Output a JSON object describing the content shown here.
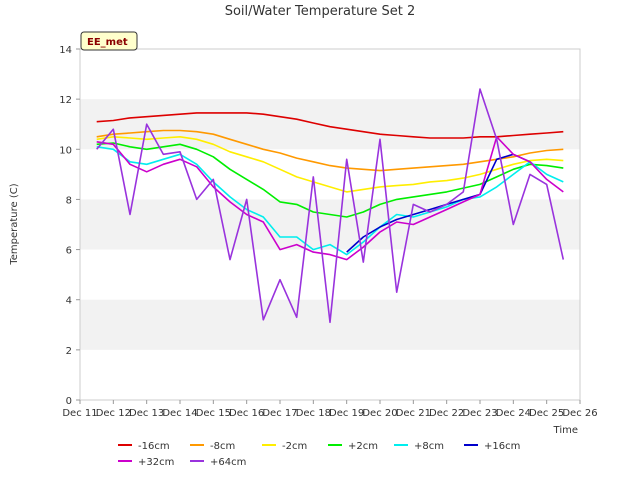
{
  "chart_data": {
    "type": "line",
    "title": "Soil/Water Temperature Set 2",
    "xlabel": "Time",
    "ylabel": "Temperature (C)",
    "badge": "EE_met",
    "x_ticks": [
      "Dec 11",
      "Dec 12",
      "Dec 13",
      "Dec 14",
      "Dec 15",
      "Dec 16",
      "Dec 17",
      "Dec 18",
      "Dec 19",
      "Dec 20",
      "Dec 21",
      "Dec 22",
      "Dec 23",
      "Dec 24",
      "Dec 25",
      "Dec 26"
    ],
    "x_range": [
      "Dec 11",
      "Dec 26"
    ],
    "y_ticks": [
      0,
      2,
      4,
      6,
      8,
      10,
      12,
      14
    ],
    "ylim": [
      0,
      14
    ],
    "grid": "alternating horizontal bands",
    "legend_position": "bottom",
    "x": [
      "Dec 11 12:00",
      "Dec 12 00:00",
      "Dec 12 12:00",
      "Dec 13 00:00",
      "Dec 13 12:00",
      "Dec 14 00:00",
      "Dec 14 12:00",
      "Dec 15 00:00",
      "Dec 15 12:00",
      "Dec 16 00:00",
      "Dec 16 12:00",
      "Dec 17 00:00",
      "Dec 17 12:00",
      "Dec 18 00:00",
      "Dec 18 12:00",
      "Dec 19 00:00",
      "Dec 19 12:00",
      "Dec 20 00:00",
      "Dec 20 12:00",
      "Dec 21 00:00",
      "Dec 21 12:00",
      "Dec 22 00:00",
      "Dec 22 12:00",
      "Dec 23 00:00",
      "Dec 23 12:00",
      "Dec 24 00:00",
      "Dec 24 12:00",
      "Dec 25 00:00",
      "Dec 25 12:00"
    ],
    "series": [
      {
        "name": "-16cm",
        "color": "#dd0000",
        "values": [
          11.1,
          11.15,
          11.25,
          11.3,
          11.35,
          11.4,
          11.45,
          11.45,
          11.45,
          11.45,
          11.4,
          11.3,
          11.2,
          11.05,
          10.9,
          10.8,
          10.7,
          10.6,
          10.55,
          10.5,
          10.45,
          10.45,
          10.45,
          10.5,
          10.5,
          10.55,
          10.6,
          10.65,
          10.7
        ]
      },
      {
        "name": "-8cm",
        "color": "#ff9900",
        "values": [
          10.5,
          10.6,
          10.65,
          10.7,
          10.75,
          10.75,
          10.7,
          10.6,
          10.4,
          10.2,
          10.0,
          9.85,
          9.65,
          9.5,
          9.35,
          9.25,
          9.2,
          9.15,
          9.2,
          9.25,
          9.3,
          9.35,
          9.4,
          9.5,
          9.6,
          9.7,
          9.85,
          9.95,
          10.0
        ]
      },
      {
        "name": "-2cm",
        "color": "#ffee00",
        "values": [
          10.4,
          10.5,
          10.45,
          10.4,
          10.45,
          10.5,
          10.4,
          10.2,
          9.9,
          9.7,
          9.5,
          9.2,
          8.9,
          8.7,
          8.5,
          8.3,
          8.4,
          8.5,
          8.55,
          8.6,
          8.7,
          8.75,
          8.85,
          9.0,
          9.2,
          9.4,
          9.55,
          9.6,
          9.55
        ]
      },
      {
        "name": "+2cm",
        "color": "#00ee00",
        "values": [
          10.2,
          10.25,
          10.1,
          10.0,
          10.1,
          10.2,
          10.0,
          9.7,
          9.2,
          8.8,
          8.4,
          7.9,
          7.8,
          7.5,
          7.4,
          7.3,
          7.5,
          7.8,
          8.0,
          8.1,
          8.2,
          8.3,
          8.45,
          8.6,
          8.9,
          9.2,
          9.4,
          9.35,
          9.25
        ]
      },
      {
        "name": "+8cm",
        "color": "#00eeee",
        "values": [
          10.1,
          10.0,
          9.5,
          9.4,
          9.6,
          9.8,
          9.4,
          8.7,
          8.1,
          7.6,
          7.3,
          6.5,
          6.5,
          6.0,
          6.2,
          5.8,
          6.3,
          6.9,
          7.4,
          7.3,
          7.5,
          7.7,
          8.0,
          8.1,
          8.5,
          9.0,
          9.5,
          9.0,
          8.7
        ]
      },
      {
        "name": "+16cm",
        "color": "#0000cc",
        "values": [
          null,
          null,
          null,
          null,
          null,
          null,
          null,
          null,
          null,
          null,
          null,
          null,
          null,
          null,
          null,
          5.9,
          6.5,
          6.9,
          7.2,
          7.4,
          7.6,
          7.8,
          8.0,
          8.2,
          9.6,
          9.8,
          9.5,
          null,
          null
        ]
      },
      {
        "name": "+32cm",
        "color": "#cc00cc",
        "values": [
          10.3,
          10.2,
          9.4,
          9.1,
          9.4,
          9.6,
          9.3,
          8.5,
          7.9,
          7.4,
          7.1,
          6.0,
          6.2,
          5.9,
          5.8,
          5.6,
          6.1,
          6.7,
          7.1,
          7.0,
          7.3,
          7.6,
          7.9,
          8.2,
          10.5,
          9.8,
          9.5,
          8.8,
          8.3
        ]
      },
      {
        "name": "+64cm",
        "color": "#9933dd",
        "values": [
          10.0,
          10.8,
          7.4,
          11.0,
          9.8,
          9.9,
          8.0,
          8.8,
          5.6,
          8.0,
          3.2,
          4.8,
          3.3,
          8.9,
          3.1,
          9.6,
          5.5,
          10.4,
          4.3,
          7.8,
          7.5,
          7.8,
          8.3,
          12.4,
          10.4,
          7.0,
          9.0,
          8.6,
          5.6
        ]
      }
    ]
  }
}
